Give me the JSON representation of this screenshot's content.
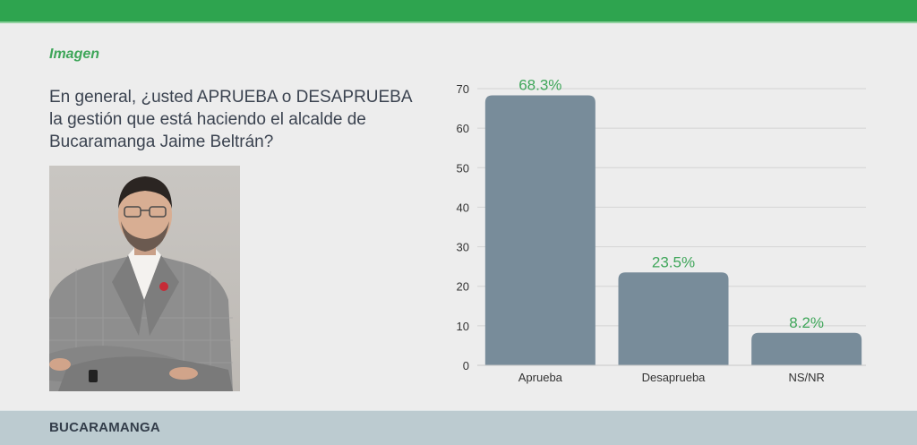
{
  "header": {
    "accent_color": "#2ea44f"
  },
  "section_label": "Imagen",
  "question": "En general, ¿usted APRUEBA o DESAPRUEBA la gestión que está haciendo el alcalde de Bucaramanga Jaime Beltrán?",
  "photo": {
    "subject": "mayor-portrait"
  },
  "footer": {
    "city": "BUCARAMANGA"
  },
  "colors": {
    "bar": "#788c9a",
    "label": "#3fa65a",
    "grid": "#d4d4d4",
    "axis_text": "#333333"
  },
  "chart_data": {
    "type": "bar",
    "title": "",
    "xlabel": "",
    "ylabel": "",
    "categories": [
      "Aprueba",
      "Desaprueba",
      "NS/NR"
    ],
    "values": [
      68.3,
      23.5,
      8.2
    ],
    "data_labels": [
      "68.3%",
      "23.5%",
      "8.2%"
    ],
    "ylim": [
      0,
      70
    ],
    "yticks": [
      0,
      10,
      20,
      30,
      40,
      50,
      60,
      70
    ],
    "ytick_labels": [
      "0",
      "10",
      "20",
      "30",
      "40",
      "50",
      "60",
      "70"
    ],
    "grid": true,
    "legend": "none"
  }
}
